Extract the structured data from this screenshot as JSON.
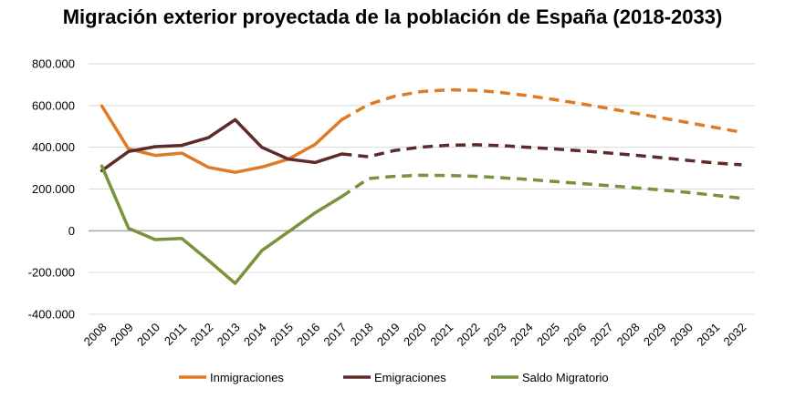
{
  "chart_data": {
    "type": "line",
    "title": "Migración exterior proyectada de la población de España (2018-2033)",
    "xlabel": "",
    "ylabel": "",
    "categories": [
      "2008",
      "2009",
      "2010",
      "2011",
      "2012",
      "2013",
      "2014",
      "2015",
      "2016",
      "2017",
      "2018",
      "2019",
      "2020",
      "2021",
      "2022",
      "2023",
      "2024",
      "2025",
      "2026",
      "2027",
      "2028",
      "2029",
      "2030",
      "2031",
      "2032"
    ],
    "y_ticks": [
      "-400.000",
      "-200.000",
      "0",
      "200.000",
      "400.000",
      "600.000",
      "800.000"
    ],
    "ylim": [
      -400000,
      800000
    ],
    "grid": true,
    "legend_position": "bottom",
    "observed_until": "2017",
    "projected_style": "dashed",
    "series": [
      {
        "name": "Inmigraciones",
        "color": "#E07B25",
        "values": [
          598000,
          392000,
          361000,
          372000,
          304000,
          280000,
          305000,
          343000,
          414000,
          532000,
          605000,
          645000,
          667000,
          675000,
          673000,
          662000,
          647000,
          628000,
          608000,
          586000,
          563000,
          541000,
          518000,
          495000,
          472000
        ]
      },
      {
        "name": "Emigraciones",
        "color": "#5E2A2A",
        "values": [
          288000,
          380000,
          403000,
          409000,
          446000,
          532000,
          400000,
          343000,
          327000,
          368000,
          355000,
          385000,
          401000,
          410000,
          412000,
          408000,
          400000,
          392000,
          383000,
          373000,
          362000,
          350000,
          337000,
          325000,
          316000
        ]
      },
      {
        "name": "Saldo Migratorio",
        "color": "#77933C",
        "values": [
          310000,
          12000,
          -42000,
          -37000,
          -142000,
          -252000,
          -95000,
          -5000,
          86000,
          164000,
          250000,
          261000,
          266000,
          265000,
          261000,
          254000,
          246000,
          236000,
          226000,
          216000,
          206000,
          195000,
          184000,
          170000,
          156000
        ]
      }
    ]
  }
}
